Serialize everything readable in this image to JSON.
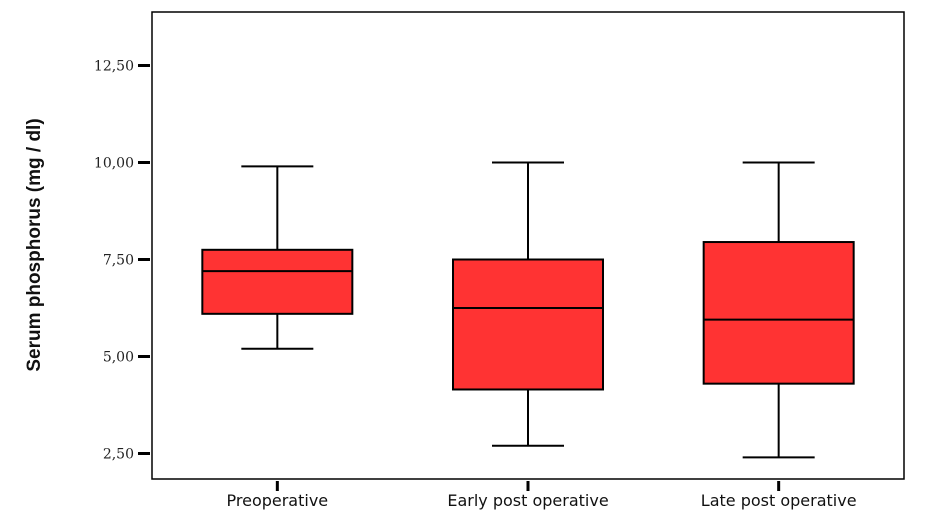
{
  "chart_data": {
    "type": "boxplot",
    "title": "",
    "xlabel": "",
    "ylabel": "Serum phosphorus (mg / dl)",
    "ylim": [
      2.0,
      14.0
    ],
    "yticks": [
      2.5,
      5.0,
      7.5,
      10.0,
      12.5
    ],
    "ytick_labels": [
      "2,50",
      "5,00",
      "7,50",
      "10,00",
      "12,50"
    ],
    "categories": [
      "Preoperative",
      "Early post operative",
      "Late post operative"
    ],
    "series": [
      {
        "boxes": [
          {
            "whisker_low": 5.2,
            "q1": 6.1,
            "median": 7.2,
            "q3": 7.75,
            "whisker_high": 9.9
          },
          {
            "whisker_low": 2.7,
            "q1": 4.15,
            "median": 6.25,
            "q3": 7.5,
            "whisker_high": 10.0
          },
          {
            "whisker_low": 2.4,
            "q1": 4.3,
            "median": 5.95,
            "q3": 7.95,
            "whisker_high": 10.0
          }
        ]
      }
    ],
    "box_color": "#FF3333",
    "line_color": "#000000",
    "grid": false,
    "legend": "none"
  }
}
